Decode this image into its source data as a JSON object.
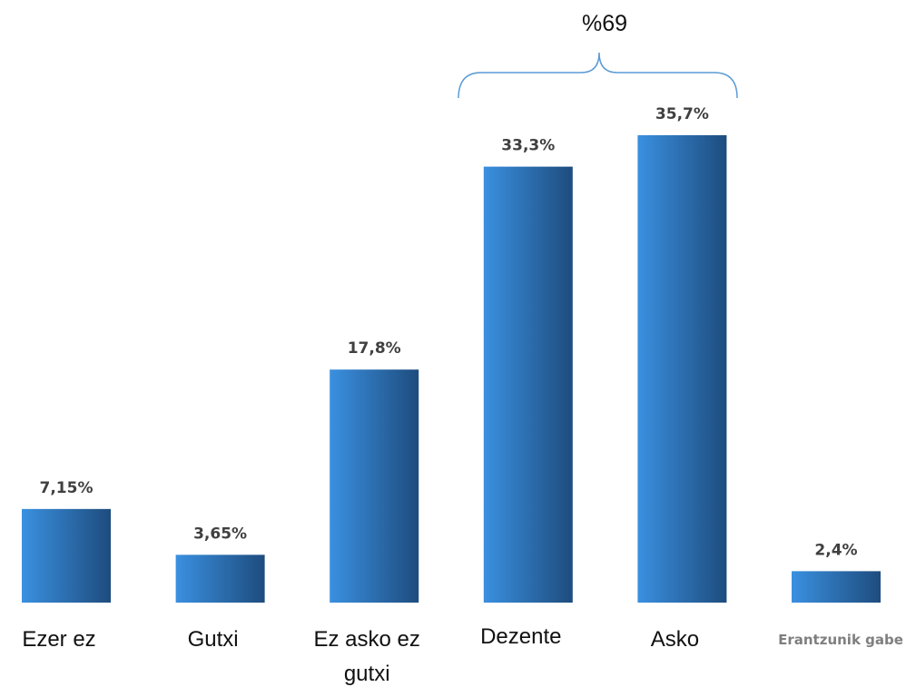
{
  "chart_data": {
    "type": "bar",
    "categories": [
      "Ezer ez",
      "Gutxi",
      "Ez asko ez gutxi",
      "Dezente",
      "Asko",
      "Erantzunik gabe"
    ],
    "values": [
      7.15,
      3.65,
      17.8,
      33.3,
      35.7,
      2.4
    ],
    "value_labels": [
      "7,15%",
      "3,65%",
      "17,8%",
      "33,3%",
      "35,7%",
      "2,4%"
    ],
    "annotation": "%69"
  }
}
